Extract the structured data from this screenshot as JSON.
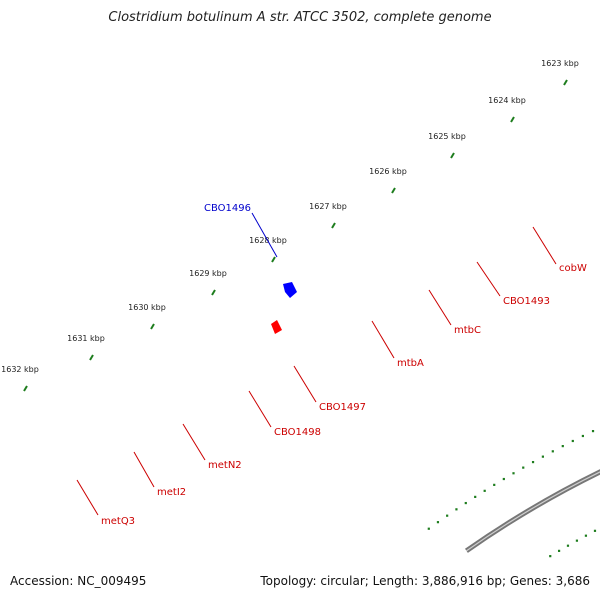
{
  "title": "Clostridium botulinum A str. ATCC 3502, complete genome",
  "footer": {
    "accession": "Accession: NC_009495",
    "summary": "Topology: circular; Length: 3,886,916 bp; Genes: 3,686"
  },
  "colors": {
    "forward_gene": "#ff0000",
    "reverse_gene": "#0000ff",
    "reverse_gene_dark": "#4b4b8c",
    "reverse_gene_gray": "#b4b4b4",
    "backbone": "#777777",
    "tick_dots": "#1e7d1e",
    "label_red": "#cc0000",
    "label_blue": "#0000cc"
  },
  "scale": {
    "unit": "kbp",
    "labels": [
      "1623 kbp",
      "1624 kbp",
      "1625 kbp",
      "1626 kbp",
      "1627 kbp",
      "1628 kbp",
      "1629 kbp",
      "1630 kbp",
      "1631 kbp",
      "1632 kbp"
    ]
  },
  "genes": [
    {
      "name": "cobW",
      "strand": "reverse",
      "shade": "gray"
    },
    {
      "name": "CBO1493",
      "strand": "forward"
    },
    {
      "name": "mtbC",
      "strand": "reverse"
    },
    {
      "name": "mtbA",
      "strand": "forward"
    },
    {
      "name": "CBO1496",
      "strand": "reverse"
    },
    {
      "name": "CBO1497",
      "strand": "forward"
    },
    {
      "name": "CBO1498",
      "strand": "reverse"
    },
    {
      "name": "metN2",
      "strand": "reverse",
      "shade": "dark"
    },
    {
      "name": "metI2",
      "strand": "reverse",
      "shade": "dark"
    },
    {
      "name": "metQ3",
      "strand": "reverse",
      "shade": "dark"
    }
  ]
}
